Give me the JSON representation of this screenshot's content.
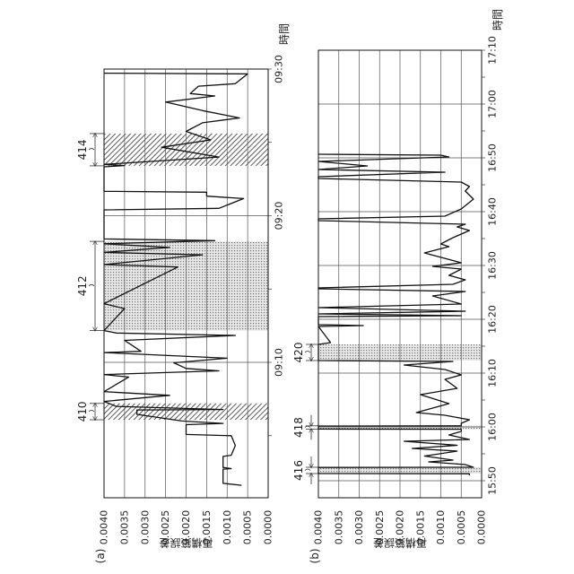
{
  "chart_data": [
    {
      "type": "line",
      "panel_label": "(a)",
      "ylabel": "再構築誤差",
      "xlabel": "時間",
      "ylim": [
        0.0,
        0.004
      ],
      "yticks": [
        "0.0040",
        "0.0035",
        "0.0030",
        "0.0025",
        "0.0020",
        "0.0015",
        "0.0010",
        "0.0005",
        "0.0000"
      ],
      "xlim": [
        "08:59:05",
        "09:30:00"
      ],
      "xticks": [
        "09:10",
        "09:20",
        "09:30"
      ],
      "grid": true,
      "colors": {
        "line": "#111111",
        "grid": "#555555"
      },
      "regions": [
        {
          "label": "410",
          "start": "09:06:05",
          "end": "09:07:12",
          "fill": "hatch"
        },
        {
          "label": "412",
          "start": "09:12:10",
          "end": "09:18:15",
          "fill": "dots"
        },
        {
          "label": "414",
          "start": "09:23:24",
          "end": "09:25:36",
          "fill": "hatch"
        }
      ],
      "series": [
        {
          "points": [
            [
              "09:01:37",
              0.00065
            ],
            [
              "09:01:45",
              0.0011
            ],
            [
              "09:02:43",
              0.0011
            ],
            [
              "09:02:45",
              0.0009
            ],
            [
              "09:02:50",
              0.0011
            ],
            [
              "09:03:35",
              0.0011
            ],
            [
              "09:03:40",
              0.0009
            ],
            [
              "09:04:20",
              0.0008
            ],
            [
              "09:05:00",
              0.0009
            ],
            [
              "09:05:05",
              0.002
            ],
            [
              "09:05:45",
              0.002
            ],
            [
              "09:05:50",
              0.0011
            ],
            [
              "09:06:00",
              0.0021
            ],
            [
              "09:06:27",
              0.0032
            ],
            [
              "09:06:45",
              0.0032
            ],
            [
              "09:06:47",
              0.0011
            ],
            [
              "09:07:00",
              0.0037
            ],
            [
              "09:07:20",
              0.004
            ],
            [
              "09:07:45",
              0.0024
            ],
            [
              "09:08:00",
              0.004
            ],
            [
              "09:09:00",
              0.0034
            ],
            [
              "09:09:10",
              0.004
            ],
            [
              "09:09:25",
              0.0012
            ],
            [
              "09:09:35",
              0.002
            ],
            [
              "09:09:58",
              0.0023
            ],
            [
              "09:10:17",
              0.001
            ],
            [
              "09:10:40",
              0.004
            ],
            [
              "09:10:45",
              0.0031
            ],
            [
              "09:11:30",
              0.0035
            ],
            [
              "09:11:50",
              0.0008
            ],
            [
              "09:12:00",
              0.0037
            ],
            [
              "09:12:10",
              0.004
            ],
            [
              "09:13:40",
              0.0035
            ],
            [
              "09:14:00",
              0.004
            ],
            [
              "09:16:30",
              0.0022
            ],
            [
              "09:16:40",
              0.004
            ],
            [
              "09:17:20",
              0.0016
            ],
            [
              "09:17:30",
              0.004
            ],
            [
              "09:17:50",
              0.0024
            ],
            [
              "09:18:05",
              0.004
            ],
            [
              "09:18:18",
              0.0013
            ],
            [
              "09:18:25",
              0.004
            ],
            [
              "09:20:24",
              0.004
            ],
            [
              "09:20:30",
              0.0012
            ],
            [
              "09:21:10",
              0.0006
            ],
            [
              "09:21:20",
              0.0015
            ],
            [
              "09:21:36",
              0.0015
            ],
            [
              "09:21:40",
              0.004
            ],
            [
              "09:23:20",
              0.004
            ],
            [
              "09:23:25",
              0.0035
            ],
            [
              "09:23:30",
              0.004
            ],
            [
              "09:24:00",
              0.0012
            ],
            [
              "09:24:40",
              0.0026
            ],
            [
              "09:25:10",
              0.0014
            ],
            [
              "09:25:45",
              0.002
            ],
            [
              "09:26:20",
              0.0016
            ],
            [
              "09:26:40",
              0.0007
            ],
            [
              "09:27:10",
              0.0016
            ],
            [
              "09:27:45",
              0.0025
            ],
            [
              "09:28:10",
              0.0013
            ],
            [
              "09:28:20",
              0.0019
            ],
            [
              "09:28:50",
              0.0017
            ],
            [
              "09:29:00",
              0.0008
            ],
            [
              "09:29:40",
              0.0005
            ],
            [
              "09:29:43",
              0.004
            ]
          ]
        }
      ]
    },
    {
      "type": "line",
      "panel_label": "(b)",
      "ylabel": "再構築誤差",
      "xlabel": "時間",
      "ylim": [
        0.0,
        0.004
      ],
      "yticks": [
        "0.0040",
        "0.0035",
        "0.0030",
        "0.0025",
        "0.0020",
        "0.0015",
        "0.0010",
        "0.0005",
        "0.0000"
      ],
      "xlim": [
        "15:46:50",
        "17:10:00"
      ],
      "xticks": [
        "15:50",
        "16:00",
        "16:10",
        "16:20",
        "16:30",
        "16:40",
        "16:50",
        "17:00",
        "17:10"
      ],
      "grid": true,
      "colors": {
        "line": "#111111",
        "grid": "#555555"
      },
      "regions": [
        {
          "label": "416",
          "start": "15:51:20",
          "end": "15:52:30",
          "fill": "dots"
        },
        {
          "label": "418",
          "start": "15:59:36",
          "end": "16:00:12",
          "fill": "dots"
        },
        {
          "label": "420",
          "start": "16:12:20",
          "end": "16:15:20",
          "fill": "dots"
        }
      ],
      "series": [
        {
          "points": [
            [
              "15:51:00",
              0.0003
            ],
            [
              "15:51:18",
              0.0003
            ],
            [
              "15:51:20",
              0.004
            ],
            [
              "15:52:28",
              0.004
            ],
            [
              "15:52:30",
              0.0002
            ],
            [
              "15:53:00",
              0.0004
            ],
            [
              "15:53:30",
              0.0013
            ],
            [
              "15:53:50",
              0.0007
            ],
            [
              "15:54:35",
              0.0014
            ],
            [
              "15:55:30",
              0.0006
            ],
            [
              "15:56:00",
              0.0017
            ],
            [
              "15:56:35",
              0.0006
            ],
            [
              "15:57:20",
              0.0019
            ],
            [
              "15:57:40",
              0.0003
            ],
            [
              "15:58:30",
              0.0008
            ],
            [
              "15:59:10",
              0.0005
            ],
            [
              "15:59:34",
              0.0005
            ],
            [
              "15:59:36",
              0.004
            ],
            [
              "16:00:10",
              0.004
            ],
            [
              "16:00:12",
              0.0005
            ],
            [
              "16:00:40",
              0.0005
            ],
            [
              "16:01:20",
              0.0003
            ],
            [
              "16:02:10",
              0.0009
            ],
            [
              "16:02:40",
              0.0016
            ],
            [
              "16:04:20",
              0.0008
            ],
            [
              "16:06:00",
              0.0015
            ],
            [
              "16:07:10",
              0.0006
            ],
            [
              "16:08:50",
              0.0009
            ],
            [
              "16:09:40",
              0.0005
            ],
            [
              "16:10:40",
              0.0009
            ],
            [
              "16:11:30",
              0.0019
            ],
            [
              "16:12:10",
              0.0007
            ],
            [
              "16:12:20",
              0.004
            ],
            [
              "16:15:20",
              0.004
            ],
            [
              "16:15:40",
              0.0037
            ],
            [
              "16:18:40",
              0.004
            ],
            [
              "16:18:50",
              0.0029
            ],
            [
              "16:19:00",
              0.004
            ],
            [
              "16:20:30",
              0.004
            ],
            [
              "16:20:40",
              0.0005
            ],
            [
              "16:21:00",
              0.004
            ],
            [
              "16:21:30",
              0.0004
            ],
            [
              "16:22:10",
              0.004
            ],
            [
              "16:22:50",
              0.0005
            ],
            [
              "16:24:20",
              0.0012
            ],
            [
              "16:25:10",
              0.0004
            ],
            [
              "16:25:40",
              0.004
            ],
            [
              "16:25:50",
              0.004
            ],
            [
              "16:26:30",
              0.0007
            ],
            [
              "16:27:20",
              0.0004
            ],
            [
              "16:28:10",
              0.0008
            ],
            [
              "16:29:20",
              0.0005
            ],
            [
              "16:29:50",
              0.0012
            ],
            [
              "16:30:30",
              0.0005
            ],
            [
              "16:32:20",
              0.0014
            ],
            [
              "16:33:30",
              0.0008
            ],
            [
              "16:34:00",
              0.001
            ],
            [
              "16:35:10",
              0.0007
            ],
            [
              "16:36:30",
              0.0003
            ],
            [
              "16:37:10",
              0.0006
            ],
            [
              "16:37:40",
              0.0004
            ],
            [
              "16:38:20",
              0.004
            ],
            [
              "16:38:40",
              0.004
            ],
            [
              "16:39:10",
              0.0009
            ],
            [
              "16:40:30",
              0.0005
            ],
            [
              "16:42:20",
              0.0002
            ],
            [
              "16:43:50",
              0.0004
            ],
            [
              "16:44:40",
              0.0003
            ],
            [
              "16:45:30",
              0.0005
            ],
            [
              "16:46:10",
              0.004
            ],
            [
              "16:46:30",
              0.004
            ],
            [
              "16:47:20",
              0.0009
            ],
            [
              "16:47:50",
              0.004
            ],
            [
              "16:48:30",
              0.0028
            ],
            [
              "16:49:20",
              0.004
            ],
            [
              "16:50:10",
              0.0008
            ],
            [
              "16:50:30",
              0.001
            ],
            [
              "16:50:40",
              0.004
            ]
          ]
        }
      ]
    }
  ]
}
